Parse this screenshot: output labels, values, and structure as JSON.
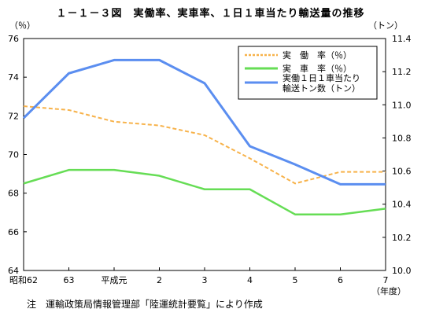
{
  "chart_data": {
    "type": "line",
    "title": "１－１－３図　実働率、実車率、１日１車当たり輸送量の推移",
    "note": "注　運輸政策局情報管理部「陸運統計要覧」により作成",
    "categories": [
      "昭和62",
      "63",
      "平成元",
      "2",
      "3",
      "4",
      "5",
      "6",
      "7"
    ],
    "xlabel": "（年度）",
    "left_axis": {
      "unit": "（％）",
      "ylim": [
        64,
        76
      ],
      "ticks": [
        64,
        66,
        68,
        70,
        72,
        74,
        76
      ]
    },
    "right_axis": {
      "unit": "（トン）",
      "ylim": [
        10.0,
        11.4
      ],
      "ticks": [
        "10.0",
        "10.2",
        "10.4",
        "10.6",
        "10.8",
        "11.0",
        "11.2",
        "11.4"
      ]
    },
    "grid": false,
    "legend_position": "top-right",
    "series": [
      {
        "name": "実　働　率（％）",
        "axis": "left",
        "color": "#f7b24a",
        "style": "dashed",
        "values": [
          72.5,
          72.3,
          71.7,
          71.5,
          71.0,
          69.8,
          68.5,
          69.1,
          69.1
        ]
      },
      {
        "name": "実　車　率（％）",
        "axis": "left",
        "color": "#66dd55",
        "style": "solid",
        "values": [
          68.5,
          69.2,
          69.2,
          68.9,
          68.2,
          68.2,
          66.9,
          66.9,
          67.2
        ]
      },
      {
        "name_lines": [
          "実働１日１車当たり",
          "輸送トン数（トン）"
        ],
        "axis": "right",
        "color": "#5b8ef0",
        "style": "solid",
        "values": [
          10.92,
          11.19,
          11.27,
          11.27,
          11.13,
          10.75,
          10.64,
          10.52,
          10.52
        ]
      }
    ]
  }
}
